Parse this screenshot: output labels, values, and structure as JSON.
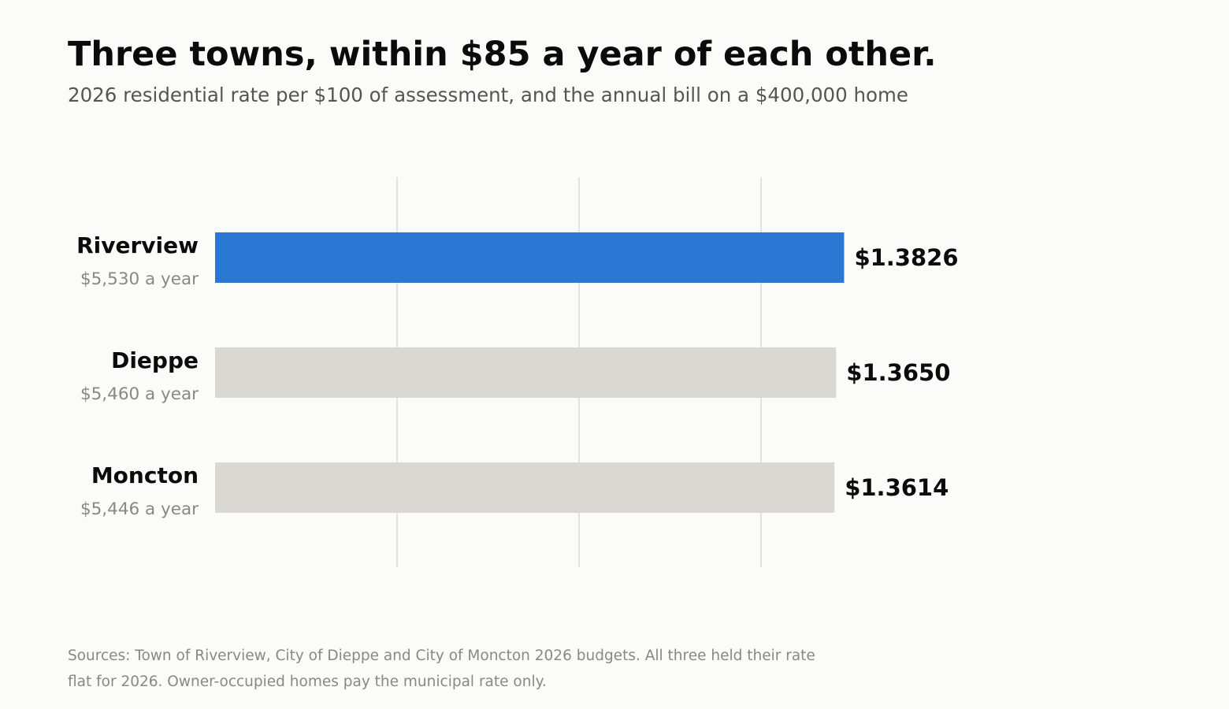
{
  "title": "Three towns, within $85 a year of each other.",
  "subtitle": "2026 residential rate per $100 of assessment, and the annual bill on a $400,000 home",
  "footnote": "Sources: Town of Riverview, City of Dieppe and City of Moncton 2026 budgets. All three held their rate flat for 2026. Owner-occupied homes pay the municipal rate only.",
  "colors": {
    "highlight": "#2a78d4",
    "bar": "#d9d8d3",
    "grid": "#e2e2e0"
  },
  "chart_data": {
    "type": "bar",
    "orientation": "horizontal",
    "categories": [
      "Riverview",
      "Dieppe",
      "Moncton"
    ],
    "values": [
      1.3826,
      1.365,
      1.3614
    ],
    "value_labels": [
      "$1.3826",
      "$1.3650",
      "$1.3614"
    ],
    "annual_bill_labels": [
      "$5,530 a year",
      "$5,460 a year",
      "$5,446 a year"
    ],
    "highlighted_category": "Riverview",
    "xlim": [
      0,
      1.6
    ],
    "grid_x": [
      0.4,
      0.8,
      1.2
    ],
    "grid": true,
    "x_tick_labels_shown": false
  }
}
